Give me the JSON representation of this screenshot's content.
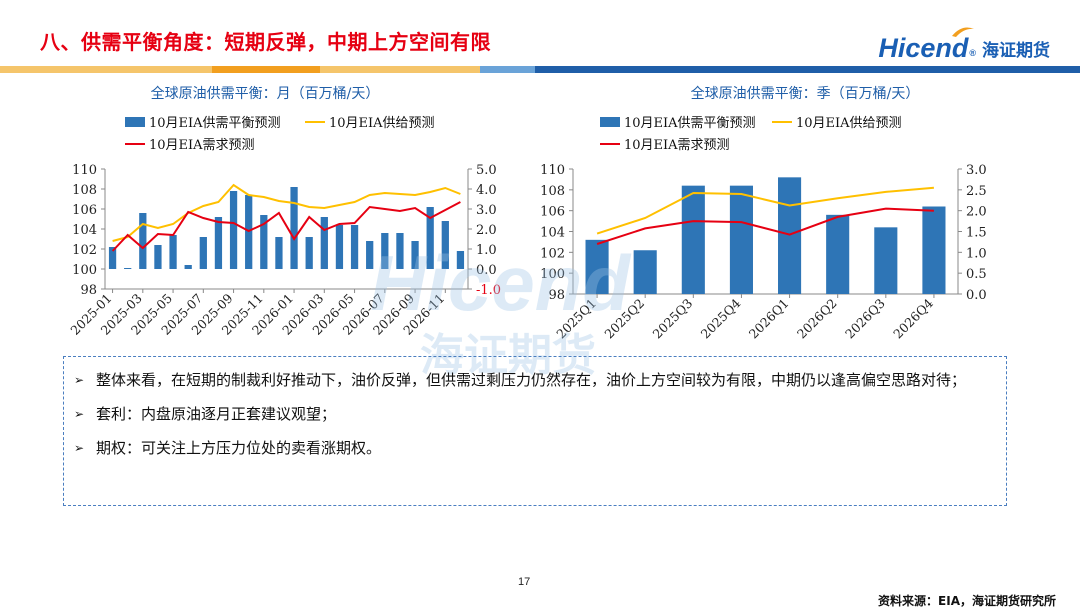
{
  "title": "八、供需平衡角度：短期反弹，中期上方空间有限",
  "logo": {
    "brand": "Hicend",
    "reg": "®",
    "cn": "海证期货"
  },
  "colors": {
    "title": "#e60012",
    "bar": "#2e75b6",
    "supply": "#ffc000",
    "demand": "#e60012",
    "band1": "#f5b94e",
    "band2": "#f29f1f",
    "band3": "#1f5ea8",
    "box": "#4a7ec0"
  },
  "watermark": {
    "brand": "Hicend",
    "cn": "海证期货"
  },
  "chart_data": [
    {
      "type": "bar",
      "title": "全球原油供需平衡：月（百万桶/天）",
      "legend": [
        "10月EIA供需平衡预测",
        "10月EIA供给预测",
        "10月EIA需求预测"
      ],
      "legend_placement": "top",
      "x": [
        "2025-01",
        "2025-02",
        "2025-03",
        "2025-04",
        "2025-05",
        "2025-06",
        "2025-07",
        "2025-08",
        "2025-09",
        "2025-10",
        "2025-11",
        "2025-12",
        "2026-01",
        "2026-02",
        "2026-03",
        "2026-04",
        "2026-05",
        "2026-06",
        "2026-07",
        "2026-08",
        "2026-09",
        "2026-10",
        "2026-11",
        "2026-12"
      ],
      "x_tick_labels": [
        "2025-01",
        "2025-03",
        "2025-05",
        "2025-07",
        "2025-09",
        "2025-11",
        "2026-01",
        "2026-03",
        "2026-05",
        "2026-07",
        "2026-09",
        "2026-11"
      ],
      "left_axis": {
        "min": 98,
        "max": 110,
        "ticks": [
          "110",
          "108",
          "106",
          "104",
          "102",
          "100",
          "98"
        ]
      },
      "right_axis": {
        "min": -1.0,
        "max": 5.0,
        "ticks": [
          "5.0",
          "4.0",
          "3.0",
          "2.0",
          "1.0",
          "0.0",
          "-1.0"
        ]
      },
      "series": [
        {
          "name": "10月EIA供需平衡预测",
          "type": "bar",
          "axis": "right",
          "values": [
            1.1,
            0.05,
            2.8,
            1.2,
            1.7,
            0.2,
            1.6,
            2.6,
            3.9,
            3.7,
            2.7,
            1.6,
            4.1,
            1.6,
            2.6,
            2.2,
            2.2,
            1.4,
            1.8,
            1.8,
            1.4,
            3.1,
            2.4,
            0.9
          ]
        },
        {
          "name": "10月EIA供给预测",
          "type": "line",
          "axis": "left",
          "values": [
            102.8,
            103.2,
            104.5,
            104.1,
            104.5,
            105.6,
            106.3,
            106.7,
            108.4,
            107.4,
            107.2,
            106.8,
            106.6,
            106.2,
            106.1,
            106.4,
            106.7,
            107.4,
            107.6,
            107.5,
            107.4,
            107.7,
            108.1,
            107.5
          ]
        },
        {
          "name": "10月EIA需求预测",
          "type": "line",
          "axis": "left",
          "values": [
            101.8,
            103.4,
            102.1,
            103.5,
            103.4,
            105.7,
            105.1,
            104.7,
            104.6,
            103.8,
            104.5,
            105.6,
            103.0,
            105.2,
            103.9,
            104.5,
            104.6,
            106.2,
            106.0,
            105.8,
            106.1,
            105.1,
            105.9,
            106.7
          ]
        }
      ]
    },
    {
      "type": "bar",
      "title": "全球原油供需平衡：季（百万桶/天）",
      "legend": [
        "10月EIA供需平衡预测",
        "10月EIA供给预测",
        "10月EIA需求预测"
      ],
      "legend_placement": "top",
      "x": [
        "2025Q1",
        "2025Q2",
        "2025Q3",
        "2025Q4",
        "2026Q1",
        "2026Q2",
        "2026Q3",
        "2026Q4"
      ],
      "x_tick_labels": [
        "2025Q1",
        "2025Q2",
        "2025Q3",
        "2025Q4",
        "2026Q1",
        "2026Q2",
        "2026Q3",
        "2026Q4"
      ],
      "left_axis": {
        "min": 98,
        "max": 110,
        "ticks": [
          "110",
          "108",
          "106",
          "104",
          "102",
          "100",
          "98"
        ]
      },
      "right_axis": {
        "min": 0.0,
        "max": 3.0,
        "ticks": [
          "3.0",
          "2.5",
          "2.0",
          "1.5",
          "1.0",
          "0.5",
          "0.0"
        ]
      },
      "series": [
        {
          "name": "10月EIA供需平衡预测",
          "type": "bar",
          "axis": "right",
          "values": [
            1.3,
            1.05,
            2.6,
            2.6,
            2.8,
            1.9,
            1.6,
            2.1
          ]
        },
        {
          "name": "10月EIA供给预测",
          "type": "line",
          "axis": "left",
          "values": [
            103.8,
            105.3,
            107.7,
            107.6,
            106.5,
            107.2,
            107.8,
            108.2
          ]
        },
        {
          "name": "10月EIA需求预测",
          "type": "line",
          "axis": "left",
          "values": [
            102.8,
            104.3,
            105.0,
            104.9,
            103.7,
            105.4,
            106.2,
            106.0
          ]
        }
      ]
    }
  ],
  "notes": [
    {
      "text": "整体来看，在短期的制裁利好推动下，油价反弹，但供需过剩压力仍然存在，油价上方空间较为有限，中期仍以逢高偏空思路对待；"
    },
    {
      "text": "套利：内盘原油逐月正套建议观望；"
    },
    {
      "text": "期权：可关注上方压力位处的卖看涨期权。"
    }
  ],
  "page_number": "17",
  "source": "资料来源：EIA，海证期货研究所"
}
